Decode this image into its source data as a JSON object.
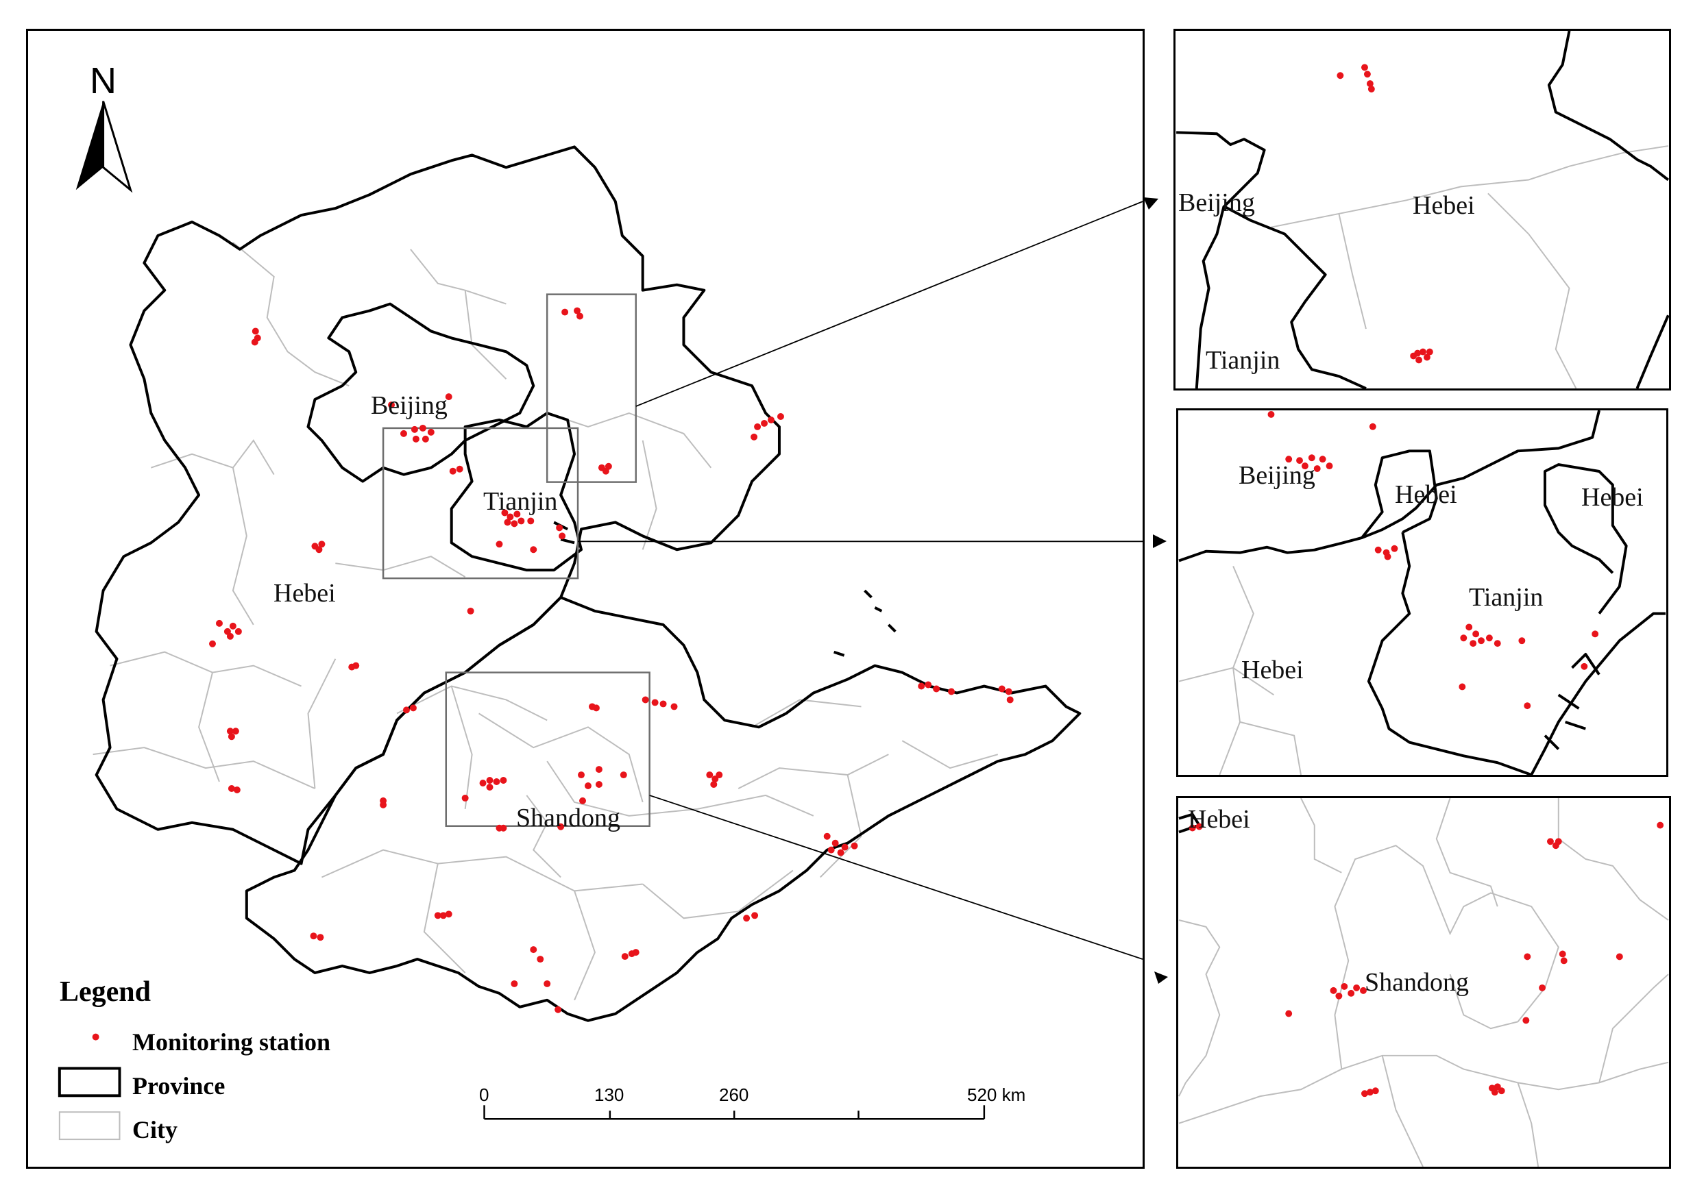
{
  "map": {
    "north_label": "N",
    "main_labels": {
      "beijing": "Beijing",
      "tianjin": "Tianjin",
      "hebei": "Hebei",
      "shandong": "Shandong"
    },
    "inset1_labels": {
      "beijing": "Beijing",
      "hebei": "Hebei",
      "tianjin": "Tianjin"
    },
    "inset2_labels": {
      "beijing": "Beijing",
      "hebei_a": "Hebei",
      "hebei_b": "Hebei",
      "tianjin": "Tianjin",
      "hebei_c": "Hebei"
    },
    "inset3_labels": {
      "hebei": "Hebei",
      "shandong": "Shandong"
    }
  },
  "legend": {
    "title": "Legend",
    "station": "Monitoring station",
    "province": "Province",
    "city": "City"
  },
  "scale_bar": {
    "t0": "0",
    "t1": "130",
    "t2": "260",
    "t3": "520 km"
  },
  "colors": {
    "station": "#e8141b",
    "province_border": "#000000",
    "city_border": "#bdbdbd",
    "inset_frame": "#6e6e6e"
  }
}
